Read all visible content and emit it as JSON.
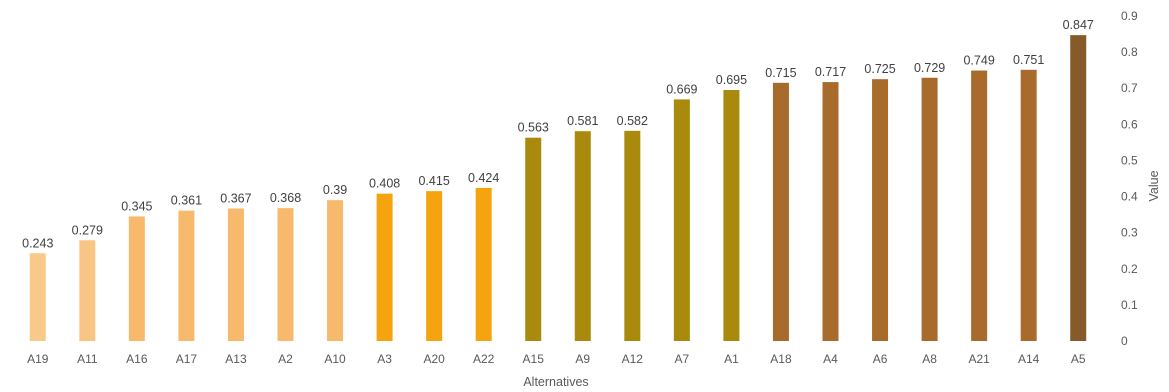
{
  "chart_data": {
    "type": "bar",
    "xlabel": "Alternatives",
    "ylabel": "Value",
    "ylim": [
      0,
      0.9
    ],
    "yticks": [
      "0",
      "0.1",
      "0.2",
      "0.3",
      "0.4",
      "0.5",
      "0.6",
      "0.7",
      "0.8",
      "0.9"
    ],
    "y_axis_position": "right",
    "grid": false,
    "legend": "none",
    "categories": [
      "A19",
      "A11",
      "A16",
      "A17",
      "A13",
      "A2",
      "A10",
      "A3",
      "A20",
      "A22",
      "A15",
      "A9",
      "A12",
      "A7",
      "A1",
      "A18",
      "A4",
      "A6",
      "A8",
      "A21",
      "A14",
      "A5"
    ],
    "values": [
      0.243,
      0.279,
      0.345,
      0.361,
      0.367,
      0.368,
      0.39,
      0.408,
      0.415,
      0.424,
      0.563,
      0.581,
      0.582,
      0.669,
      0.695,
      0.715,
      0.717,
      0.725,
      0.729,
      0.749,
      0.751,
      0.847
    ],
    "value_labels": [
      "0.243",
      "0.279",
      "0.345",
      "0.361",
      "0.367",
      "0.368",
      "0.39",
      "0.408",
      "0.415",
      "0.424",
      "0.563",
      "0.581",
      "0.582",
      "0.669",
      "0.695",
      "0.715",
      "0.717",
      "0.725",
      "0.729",
      "0.749",
      "0.751",
      "0.847"
    ],
    "bar_colors": [
      "#F9C98A",
      "#F8C585",
      "#F7BA6C",
      "#F7BA6C",
      "#F7BA6C",
      "#F7BA6C",
      "#F7BA6C",
      "#F5A30F",
      "#F5A30F",
      "#F5A30F",
      "#A98A0D",
      "#A98A0D",
      "#A98A0D",
      "#A98A0D",
      "#A98A0D",
      "#A96B2B",
      "#A96B2B",
      "#A96B2B",
      "#A96B2B",
      "#A96B2B",
      "#A96B2B",
      "#875A2A"
    ]
  }
}
